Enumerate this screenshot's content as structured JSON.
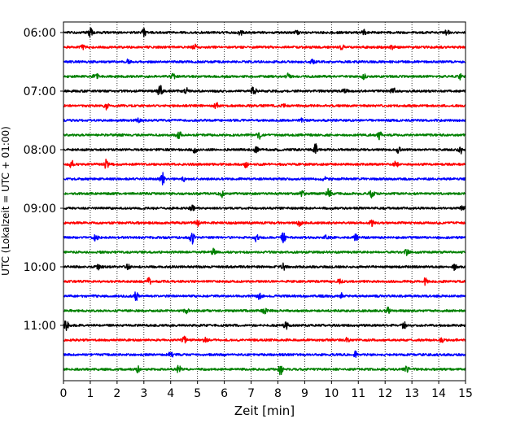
{
  "chart_data": {
    "type": "line",
    "xlabel": "Zeit  [min]",
    "ylabel": "UTC (Lokalzeit = UTC + 01:00)",
    "xlim": [
      0,
      15
    ],
    "x_ticks": [
      0,
      1,
      2,
      3,
      4,
      5,
      6,
      7,
      8,
      9,
      10,
      11,
      12,
      13,
      14,
      15
    ],
    "x_grid": "dotted vertical lines at each minute",
    "y_tick_labels": [
      "06:00",
      "07:00",
      "08:00",
      "09:00",
      "10:00",
      "11:00"
    ],
    "trace_interval_minutes": 15,
    "first_trace": "06:00",
    "trace_count": 24,
    "trace_colors": [
      "#000000",
      "#ff0000",
      "#0000ff",
      "#008000"
    ],
    "traces": [
      {
        "start": "06:00",
        "color": "#000000",
        "events": [
          [
            1.0,
            1.0
          ],
          [
            3.0,
            0.9
          ],
          [
            6.6,
            0.6
          ],
          [
            8.7,
            0.5
          ],
          [
            11.2,
            0.6
          ],
          [
            14.3,
            0.6
          ]
        ]
      },
      {
        "start": "06:15",
        "color": "#ff0000",
        "events": [
          [
            0.7,
            0.5
          ],
          [
            4.9,
            0.6
          ],
          [
            10.4,
            0.5
          ],
          [
            12.3,
            0.7
          ]
        ]
      },
      {
        "start": "06:30",
        "color": "#0000ff",
        "events": [
          [
            2.4,
            0.4
          ],
          [
            9.3,
            0.5
          ]
        ]
      },
      {
        "start": "06:45",
        "color": "#008000",
        "events": [
          [
            1.2,
            0.9
          ],
          [
            4.1,
            0.6
          ],
          [
            8.4,
            0.8
          ],
          [
            11.2,
            0.6
          ],
          [
            14.8,
            0.6
          ]
        ]
      },
      {
        "start": "07:00",
        "color": "#000000",
        "events": [
          [
            3.6,
            1.4
          ],
          [
            4.6,
            0.7
          ],
          [
            7.1,
            1.4
          ],
          [
            10.5,
            0.6
          ],
          [
            12.3,
            0.9
          ]
        ]
      },
      {
        "start": "07:15",
        "color": "#ff0000",
        "events": [
          [
            1.6,
            0.8
          ],
          [
            5.7,
            0.8
          ],
          [
            8.2,
            0.5
          ]
        ]
      },
      {
        "start": "07:30",
        "color": "#0000ff",
        "events": [
          [
            2.8,
            0.4
          ],
          [
            8.9,
            0.4
          ]
        ]
      },
      {
        "start": "07:45",
        "color": "#008000",
        "events": [
          [
            4.3,
            1.2
          ],
          [
            7.3,
            0.8
          ],
          [
            11.8,
            0.9
          ]
        ]
      },
      {
        "start": "08:00",
        "color": "#000000",
        "events": [
          [
            4.9,
            0.8
          ],
          [
            7.2,
            0.6
          ],
          [
            9.4,
            1.4
          ],
          [
            12.5,
            0.7
          ],
          [
            14.8,
            1.3
          ]
        ]
      },
      {
        "start": "08:15",
        "color": "#ff0000",
        "events": [
          [
            0.3,
            0.9
          ],
          [
            1.6,
            1.1
          ],
          [
            6.8,
            0.7
          ],
          [
            12.4,
            0.7
          ]
        ]
      },
      {
        "start": "08:30",
        "color": "#0000ff",
        "events": [
          [
            3.7,
            1.4
          ],
          [
            4.5,
            0.5
          ],
          [
            9.7,
            0.7
          ]
        ]
      },
      {
        "start": "08:45",
        "color": "#008000",
        "events": [
          [
            5.9,
            0.8
          ],
          [
            8.9,
            0.6
          ],
          [
            9.9,
            1.1
          ],
          [
            11.5,
            0.9
          ]
        ]
      },
      {
        "start": "09:00",
        "color": "#000000",
        "events": [
          [
            4.8,
            0.6
          ],
          [
            14.9,
            0.7
          ]
        ]
      },
      {
        "start": "09:15",
        "color": "#ff0000",
        "events": [
          [
            5.0,
            0.7
          ],
          [
            8.8,
            0.6
          ],
          [
            11.5,
            0.7
          ]
        ]
      },
      {
        "start": "09:30",
        "color": "#0000ff",
        "events": [
          [
            1.2,
            0.7
          ],
          [
            4.8,
            1.4
          ],
          [
            7.2,
            0.9
          ],
          [
            8.2,
            1.1
          ],
          [
            9.8,
            0.7
          ],
          [
            10.9,
            0.8
          ]
        ]
      },
      {
        "start": "09:45",
        "color": "#008000",
        "events": [
          [
            5.6,
            0.9
          ],
          [
            12.8,
            0.6
          ]
        ]
      },
      {
        "start": "10:00",
        "color": "#000000",
        "events": [
          [
            1.3,
            0.6
          ],
          [
            2.4,
            0.6
          ],
          [
            8.2,
            0.7
          ],
          [
            14.6,
            0.7
          ]
        ]
      },
      {
        "start": "10:15",
        "color": "#ff0000",
        "events": [
          [
            3.2,
            0.8
          ],
          [
            10.3,
            0.6
          ],
          [
            13.5,
            0.7
          ]
        ]
      },
      {
        "start": "10:30",
        "color": "#0000ff",
        "events": [
          [
            2.7,
            1.1
          ],
          [
            7.3,
            0.7
          ],
          [
            10.4,
            0.6
          ]
        ]
      },
      {
        "start": "10:45",
        "color": "#008000",
        "events": [
          [
            4.6,
            0.8
          ],
          [
            7.5,
            0.6
          ],
          [
            12.1,
            0.7
          ]
        ]
      },
      {
        "start": "11:00",
        "color": "#000000",
        "events": [
          [
            0.1,
            1.2
          ],
          [
            8.3,
            0.9
          ],
          [
            12.7,
            0.9
          ]
        ]
      },
      {
        "start": "11:15",
        "color": "#ff0000",
        "events": [
          [
            4.5,
            1.0
          ],
          [
            5.3,
            0.6
          ],
          [
            10.6,
            0.6
          ],
          [
            14.1,
            0.5
          ]
        ]
      },
      {
        "start": "11:30",
        "color": "#0000ff",
        "events": [
          [
            4.0,
            0.9
          ],
          [
            10.9,
            0.7
          ]
        ]
      },
      {
        "start": "11:45",
        "color": "#008000",
        "events": [
          [
            2.8,
            0.9
          ],
          [
            4.3,
            0.8
          ],
          [
            8.1,
            1.2
          ],
          [
            12.8,
            0.6
          ]
        ]
      }
    ]
  }
}
